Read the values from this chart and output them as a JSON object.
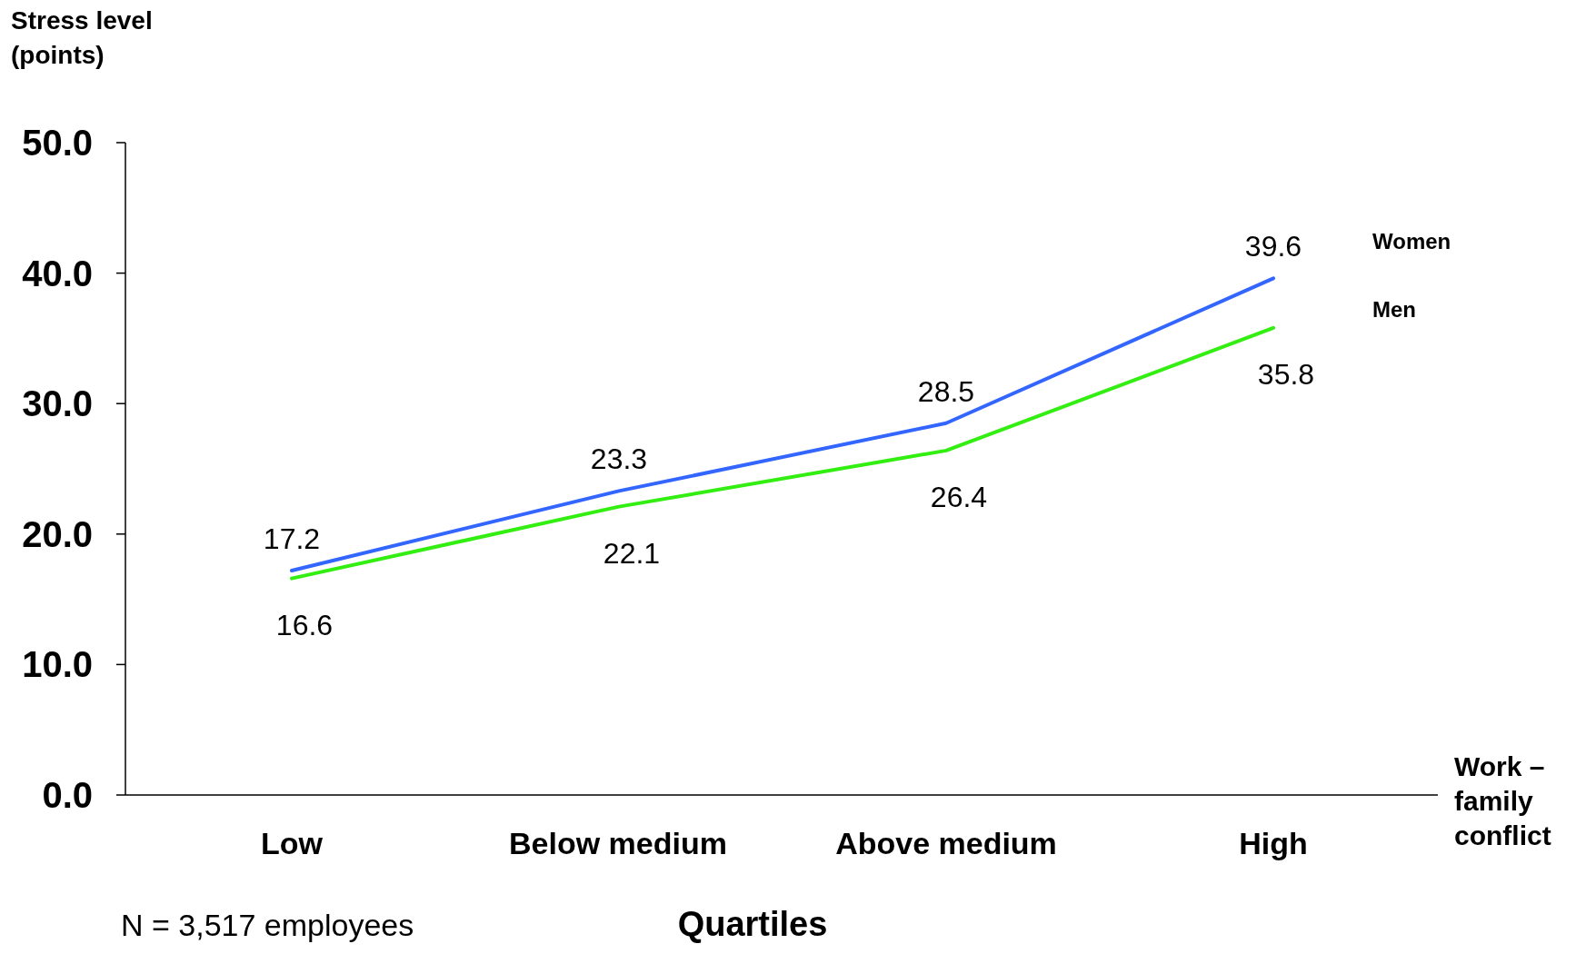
{
  "chart_data": {
    "type": "line",
    "ylabel": "Stress level (points)",
    "xlabel": "Work – family conflict",
    "categories": [
      "Low",
      "Below medium",
      "Above medium",
      "High"
    ],
    "series": [
      {
        "name": "Women",
        "color": "#3366ff",
        "values": [
          17.2,
          23.3,
          28.5,
          39.6
        ]
      },
      {
        "name": "Men",
        "color": "#33ee11",
        "values": [
          16.6,
          22.1,
          26.4,
          35.8
        ]
      }
    ],
    "ylim": [
      0,
      50
    ],
    "yticks": [
      {
        "value": 0,
        "label": "0.0"
      },
      {
        "value": 10,
        "label": "10.0"
      },
      {
        "value": 20,
        "label": "20.0"
      },
      {
        "value": 30,
        "label": "30.0"
      },
      {
        "value": 40,
        "label": "40.0"
      },
      {
        "value": 50,
        "label": "50.0"
      }
    ],
    "data_labels": true,
    "grid": false,
    "marker": "none",
    "line_style": "solid",
    "annotations": [
      "Quartiles",
      "N = 3,517 employees"
    ]
  }
}
